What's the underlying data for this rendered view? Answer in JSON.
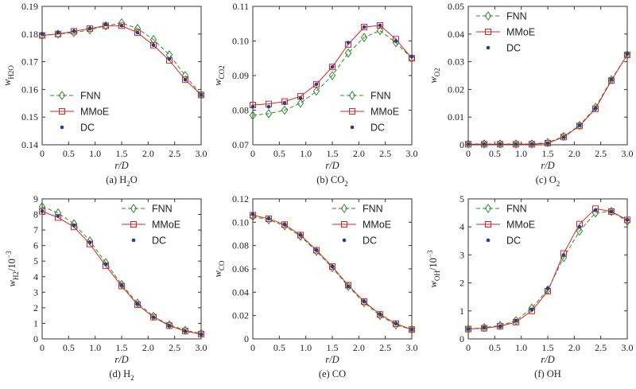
{
  "chart_data": [
    {
      "type": "line",
      "caption": {
        "pre": "(a) H",
        "sub": "2",
        "post": "O"
      },
      "xlabel": "r/D",
      "ylabel": {
        "base": "w",
        "sub": "H2O"
      },
      "xlim": [
        0,
        3.0
      ],
      "ylim": [
        0.14,
        0.19
      ],
      "xticks": [
        "0",
        "0.5",
        "1.0",
        "1.5",
        "2.0",
        "2.5",
        "3.0"
      ],
      "yticks": [
        "0.14",
        "0.15",
        "0.16",
        "0.17",
        "0.18",
        "0.19"
      ],
      "legend_position": "bottom-left",
      "x": [
        0,
        0.3,
        0.6,
        0.9,
        1.2,
        1.5,
        1.8,
        2.1,
        2.4,
        2.7,
        3.0
      ],
      "series": [
        {
          "name": "FNN",
          "values": [
            0.1795,
            0.18,
            0.1805,
            0.1815,
            0.183,
            0.184,
            0.182,
            0.178,
            0.1725,
            0.165,
            0.158
          ]
        },
        {
          "name": "MMoE",
          "values": [
            0.1795,
            0.18,
            0.181,
            0.182,
            0.183,
            0.183,
            0.1805,
            0.176,
            0.1705,
            0.1635,
            0.158
          ]
        },
        {
          "name": "DC",
          "values": [
            0.18,
            0.1805,
            0.181,
            0.182,
            0.1835,
            0.183,
            0.1805,
            0.176,
            0.171,
            0.1635,
            0.158
          ]
        }
      ]
    },
    {
      "type": "line",
      "caption": {
        "pre": "(b) CO",
        "sub": "2",
        "post": ""
      },
      "xlabel": "r/D",
      "ylabel": {
        "base": "w",
        "sub": "CO2"
      },
      "xlim": [
        0,
        3.0
      ],
      "ylim": [
        0.07,
        0.11
      ],
      "xticks": [
        "0",
        "0.5",
        "1.0",
        "1.5",
        "2.0",
        "2.5",
        "3.0"
      ],
      "yticks": [
        "0.07",
        "0.08",
        "0.09",
        "0.10",
        "0.11"
      ],
      "legend_position": "bottom-right",
      "x": [
        0,
        0.3,
        0.6,
        0.9,
        1.2,
        1.5,
        1.8,
        2.1,
        2.4,
        2.7,
        3.0
      ],
      "series": [
        {
          "name": "FNN",
          "values": [
            0.0785,
            0.079,
            0.08,
            0.082,
            0.0855,
            0.09,
            0.0965,
            0.101,
            0.103,
            0.0995,
            0.095
          ]
        },
        {
          "name": "MMoE",
          "values": [
            0.0815,
            0.0818,
            0.0825,
            0.084,
            0.0875,
            0.0925,
            0.099,
            0.104,
            0.1045,
            0.1005,
            0.095
          ]
        },
        {
          "name": "DC",
          "values": [
            0.081,
            0.081,
            0.082,
            0.0835,
            0.0875,
            0.0925,
            0.0995,
            0.104,
            0.1045,
            0.1,
            0.0955
          ]
        }
      ]
    },
    {
      "type": "line",
      "caption": {
        "pre": "(c) O",
        "sub": "2",
        "post": ""
      },
      "xlabel": "r/D",
      "ylabel": {
        "base": "w",
        "sub": "O2"
      },
      "xlim": [
        0,
        3.0
      ],
      "ylim": [
        0,
        0.05
      ],
      "xticks": [
        "0",
        "0.5",
        "1.0",
        "1.5",
        "2.0",
        "2.5",
        "3.0"
      ],
      "yticks": [
        "0",
        "0.01",
        "0.02",
        "0.03",
        "0.04",
        "0.05"
      ],
      "legend_position": "top-left",
      "x": [
        0,
        0.3,
        0.6,
        0.9,
        1.2,
        1.5,
        1.8,
        2.1,
        2.4,
        2.7,
        3.0
      ],
      "series": [
        {
          "name": "FNN",
          "values": [
            0.0003,
            0.0003,
            0.0003,
            0.0003,
            0.0003,
            0.0008,
            0.003,
            0.007,
            0.0135,
            0.0235,
            0.0325
          ]
        },
        {
          "name": "MMoE",
          "values": [
            0.0002,
            0.0002,
            0.0002,
            0.0002,
            0.0002,
            0.0006,
            0.0028,
            0.0068,
            0.013,
            0.0232,
            0.0325
          ]
        },
        {
          "name": "DC",
          "values": [
            0.0002,
            0.0002,
            0.0002,
            0.0002,
            0.0002,
            0.0006,
            0.0028,
            0.007,
            0.0132,
            0.0235,
            0.0328
          ]
        }
      ]
    },
    {
      "type": "line",
      "caption": {
        "pre": "(d) H",
        "sub": "2",
        "post": ""
      },
      "xlabel": "r/D",
      "ylabel": {
        "base": "w",
        "sub": "H2",
        "post": "/10",
        "sup": "−3"
      },
      "xlim": [
        0,
        3.0
      ],
      "ylim": [
        0,
        9
      ],
      "xticks": [
        "0",
        "0.5",
        "1.0",
        "1.5",
        "2.0",
        "2.5",
        "3.0"
      ],
      "yticks": [
        "0",
        "1",
        "2",
        "3",
        "4",
        "5",
        "6",
        "7",
        "8",
        "9"
      ],
      "legend_position": "top-right",
      "x": [
        0,
        0.3,
        0.6,
        0.9,
        1.2,
        1.5,
        1.8,
        2.1,
        2.4,
        2.7,
        3.0
      ],
      "series": [
        {
          "name": "FNN",
          "values": [
            8.5,
            8.1,
            7.4,
            6.3,
            4.9,
            3.5,
            2.3,
            1.45,
            0.9,
            0.55,
            0.35
          ]
        },
        {
          "name": "MMoE",
          "values": [
            8.2,
            7.8,
            7.2,
            6.1,
            4.7,
            3.4,
            2.2,
            1.4,
            0.85,
            0.5,
            0.3
          ]
        },
        {
          "name": "DC",
          "values": [
            8.2,
            7.9,
            7.3,
            6.2,
            4.8,
            3.45,
            2.25,
            1.4,
            0.85,
            0.5,
            0.3
          ]
        }
      ]
    },
    {
      "type": "line",
      "caption": {
        "pre": "(e) CO",
        "sub": "",
        "post": ""
      },
      "xlabel": "r/D",
      "ylabel": {
        "base": "w",
        "sub": "CO"
      },
      "xlim": [
        0,
        3.0
      ],
      "ylim": [
        0,
        0.12
      ],
      "xticks": [
        "0",
        "0.5",
        "1.0",
        "1.5",
        "2.0",
        "2.5",
        "3.0"
      ],
      "yticks": [
        "0",
        "0.02",
        "0.04",
        "0.06",
        "0.08",
        "0.10",
        "0.12"
      ],
      "legend_position": "top-right",
      "x": [
        0,
        0.3,
        0.6,
        0.9,
        1.2,
        1.5,
        1.8,
        2.1,
        2.4,
        2.7,
        3.0
      ],
      "series": [
        {
          "name": "FNN",
          "values": [
            0.105,
            0.102,
            0.097,
            0.088,
            0.075,
            0.061,
            0.045,
            0.031,
            0.02,
            0.012,
            0.008
          ]
        },
        {
          "name": "MMoE",
          "values": [
            0.106,
            0.103,
            0.098,
            0.089,
            0.076,
            0.062,
            0.046,
            0.032,
            0.021,
            0.013,
            0.008
          ]
        },
        {
          "name": "DC",
          "values": [
            0.107,
            0.103,
            0.098,
            0.089,
            0.076,
            0.062,
            0.045,
            0.032,
            0.021,
            0.013,
            0.008
          ]
        }
      ]
    },
    {
      "type": "line",
      "caption": {
        "pre": "(f) OH",
        "sub": "",
        "post": ""
      },
      "xlabel": "r/D",
      "ylabel": {
        "base": "w",
        "sub": "OH",
        "post": "/10",
        "sup": "−3"
      },
      "xlim": [
        0,
        3.0
      ],
      "ylim": [
        0,
        5
      ],
      "xticks": [
        "0",
        "0.5",
        "1.0",
        "1.5",
        "2.0",
        "2.5",
        "3.0"
      ],
      "yticks": [
        "0",
        "1",
        "2",
        "3",
        "4",
        "5"
      ],
      "legend_position": "top-left",
      "x": [
        0,
        0.3,
        0.6,
        0.9,
        1.2,
        1.5,
        1.8,
        2.1,
        2.4,
        2.7,
        3.0
      ],
      "series": [
        {
          "name": "FNN",
          "values": [
            0.35,
            0.4,
            0.48,
            0.65,
            1.1,
            1.75,
            2.9,
            3.85,
            4.5,
            4.55,
            4.2
          ]
        },
        {
          "name": "MMoE",
          "values": [
            0.35,
            0.38,
            0.45,
            0.6,
            1.0,
            1.7,
            3.05,
            4.1,
            4.65,
            4.55,
            4.25
          ]
        },
        {
          "name": "DC",
          "values": [
            0.35,
            0.4,
            0.45,
            0.65,
            1.05,
            1.8,
            3.0,
            4.0,
            4.6,
            4.55,
            4.25
          ]
        }
      ]
    }
  ],
  "style": {
    "fnn_color": "#2e8b2e",
    "mmoe_color": "#d62728",
    "dc_color": "#1f3f8f",
    "axis_color": "#333333"
  }
}
